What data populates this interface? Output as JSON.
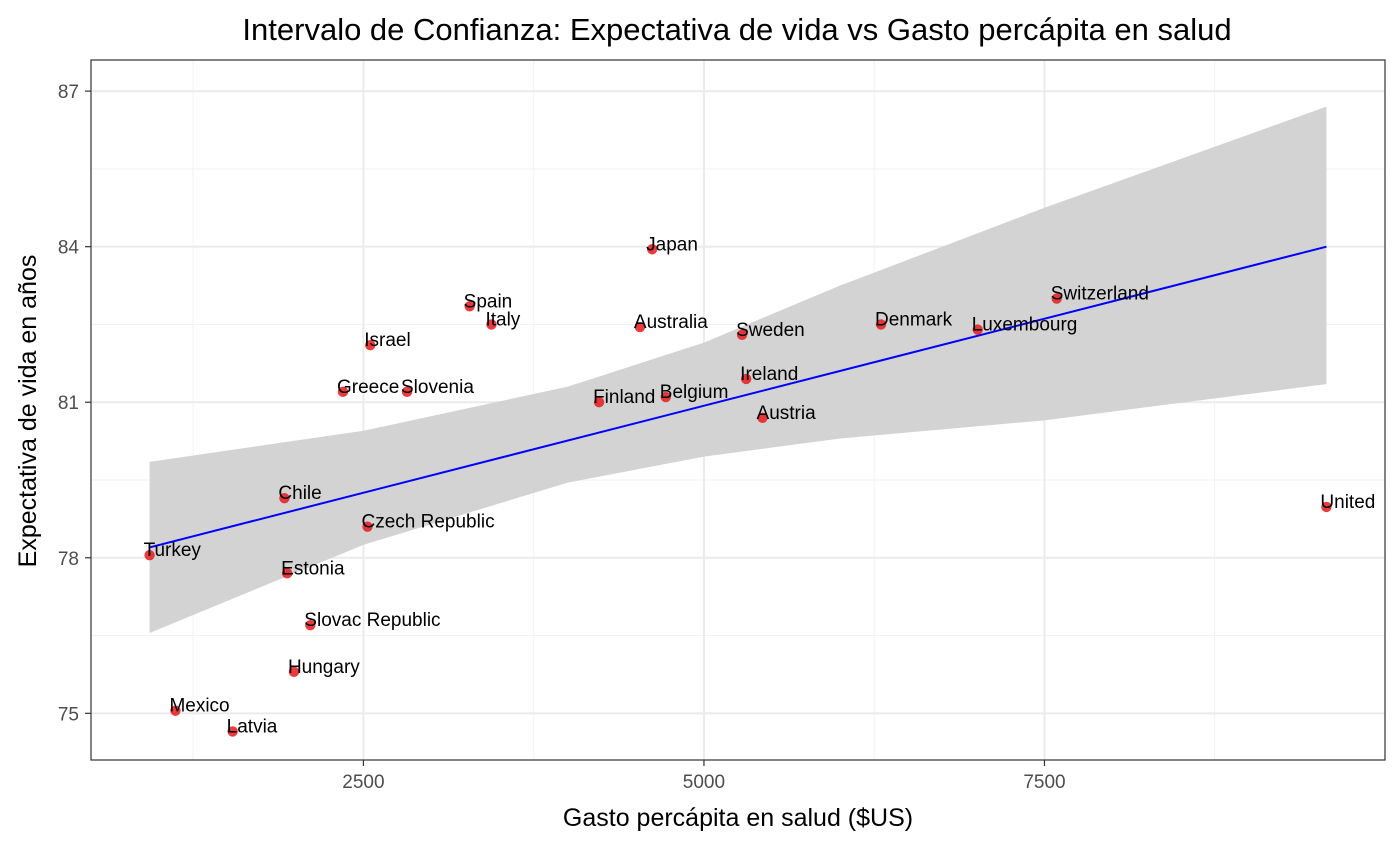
{
  "chart_data": {
    "type": "scatter",
    "title": "Intervalo de Confianza: Expectativa de vida vs Gasto percápita en salud",
    "xlabel": "Gasto percápita en salud ($US)",
    "ylabel": "Expectativa de vida en años",
    "xlim": [
      500,
      10000
    ],
    "ylim": [
      74.1,
      87.6
    ],
    "x_ticks": [
      2500,
      5000,
      7500
    ],
    "x_tick_labels": [
      "2500",
      "5000",
      "7500"
    ],
    "y_ticks": [
      75,
      78,
      81,
      84,
      87
    ],
    "y_tick_labels": [
      "75",
      "78",
      "81",
      "84",
      "87"
    ],
    "grid": true,
    "point_color": "#e41a1c",
    "line_color": "#0000ff",
    "band_color": "#d3d3d3",
    "points": [
      {
        "label": "Turkey",
        "x": 930,
        "y": 78.05
      },
      {
        "label": "Mexico",
        "x": 1120,
        "y": 75.05
      },
      {
        "label": "Latvia",
        "x": 1540,
        "y": 74.65
      },
      {
        "label": "Chile",
        "x": 1920,
        "y": 79.15
      },
      {
        "label": "Estonia",
        "x": 1940,
        "y": 77.7
      },
      {
        "label": "Hungary",
        "x": 1990,
        "y": 75.8
      },
      {
        "label": "Slovac Republic",
        "x": 2110,
        "y": 76.7
      },
      {
        "label": "Greece",
        "x": 2350,
        "y": 81.2
      },
      {
        "label": "Czech Republic",
        "x": 2530,
        "y": 78.6
      },
      {
        "label": "Israel",
        "x": 2550,
        "y": 82.1
      },
      {
        "label": "Slovenia",
        "x": 2820,
        "y": 81.2
      },
      {
        "label": "Spain",
        "x": 3280,
        "y": 82.85
      },
      {
        "label": "Italy",
        "x": 3440,
        "y": 82.5
      },
      {
        "label": "Finland",
        "x": 4230,
        "y": 81.0
      },
      {
        "label": "Australia",
        "x": 4530,
        "y": 82.45
      },
      {
        "label": "Japan",
        "x": 4620,
        "y": 83.95
      },
      {
        "label": "Belgium",
        "x": 4720,
        "y": 81.1
      },
      {
        "label": "Sweden",
        "x": 5280,
        "y": 82.3
      },
      {
        "label": "Ireland",
        "x": 5310,
        "y": 81.45
      },
      {
        "label": "Austria",
        "x": 5430,
        "y": 80.7
      },
      {
        "label": "Denmark",
        "x": 6300,
        "y": 82.5
      },
      {
        "label": "Luxembourg",
        "x": 7010,
        "y": 82.4
      },
      {
        "label": "Switzerland",
        "x": 7590,
        "y": 83.0
      },
      {
        "label": "United",
        "x": 9570,
        "y": 78.98
      }
    ],
    "fit_line": {
      "x": [
        930,
        9570
      ],
      "y": [
        78.2,
        84.0
      ]
    },
    "confidence_band": {
      "x": [
        930,
        2500,
        4000,
        5000,
        6000,
        7500,
        9570
      ],
      "upper": [
        79.85,
        80.45,
        81.3,
        82.15,
        83.25,
        84.75,
        86.7
      ],
      "lower": [
        76.55,
        78.25,
        79.45,
        79.95,
        80.3,
        80.65,
        81.35
      ]
    }
  }
}
